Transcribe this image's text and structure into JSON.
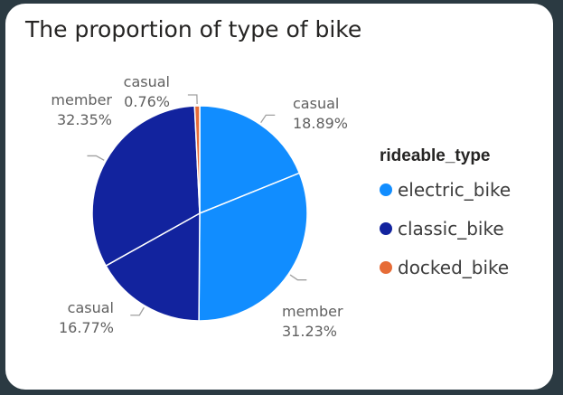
{
  "chart_data": {
    "type": "pie",
    "title": "The proportion of type of bike",
    "legend_title": "rideable_type",
    "legend_placement": "right",
    "legend": [
      {
        "name": "electric_bike",
        "color": "#118dff"
      },
      {
        "name": "classic_bike",
        "color": "#12239e"
      },
      {
        "name": "docked_bike",
        "color": "#e66c37"
      }
    ],
    "slices": [
      {
        "rideable_type": "electric_bike",
        "member_casual": "casual",
        "value": 18.89,
        "label_name": "casual",
        "label_pct": "18.89%",
        "color": "#118dff"
      },
      {
        "rideable_type": "electric_bike",
        "member_casual": "member",
        "value": 31.23,
        "label_name": "member",
        "label_pct": "31.23%",
        "color": "#118dff"
      },
      {
        "rideable_type": "classic_bike",
        "member_casual": "casual",
        "value": 16.77,
        "label_name": "casual",
        "label_pct": "16.77%",
        "color": "#12239e"
      },
      {
        "rideable_type": "classic_bike",
        "member_casual": "member",
        "value": 32.35,
        "label_name": "member",
        "label_pct": "32.35%",
        "color": "#12239e"
      },
      {
        "rideable_type": "docked_bike",
        "member_casual": "casual",
        "value": 0.76,
        "label_name": "casual",
        "label_pct": "0.76%",
        "color": "#e66c37"
      }
    ]
  }
}
